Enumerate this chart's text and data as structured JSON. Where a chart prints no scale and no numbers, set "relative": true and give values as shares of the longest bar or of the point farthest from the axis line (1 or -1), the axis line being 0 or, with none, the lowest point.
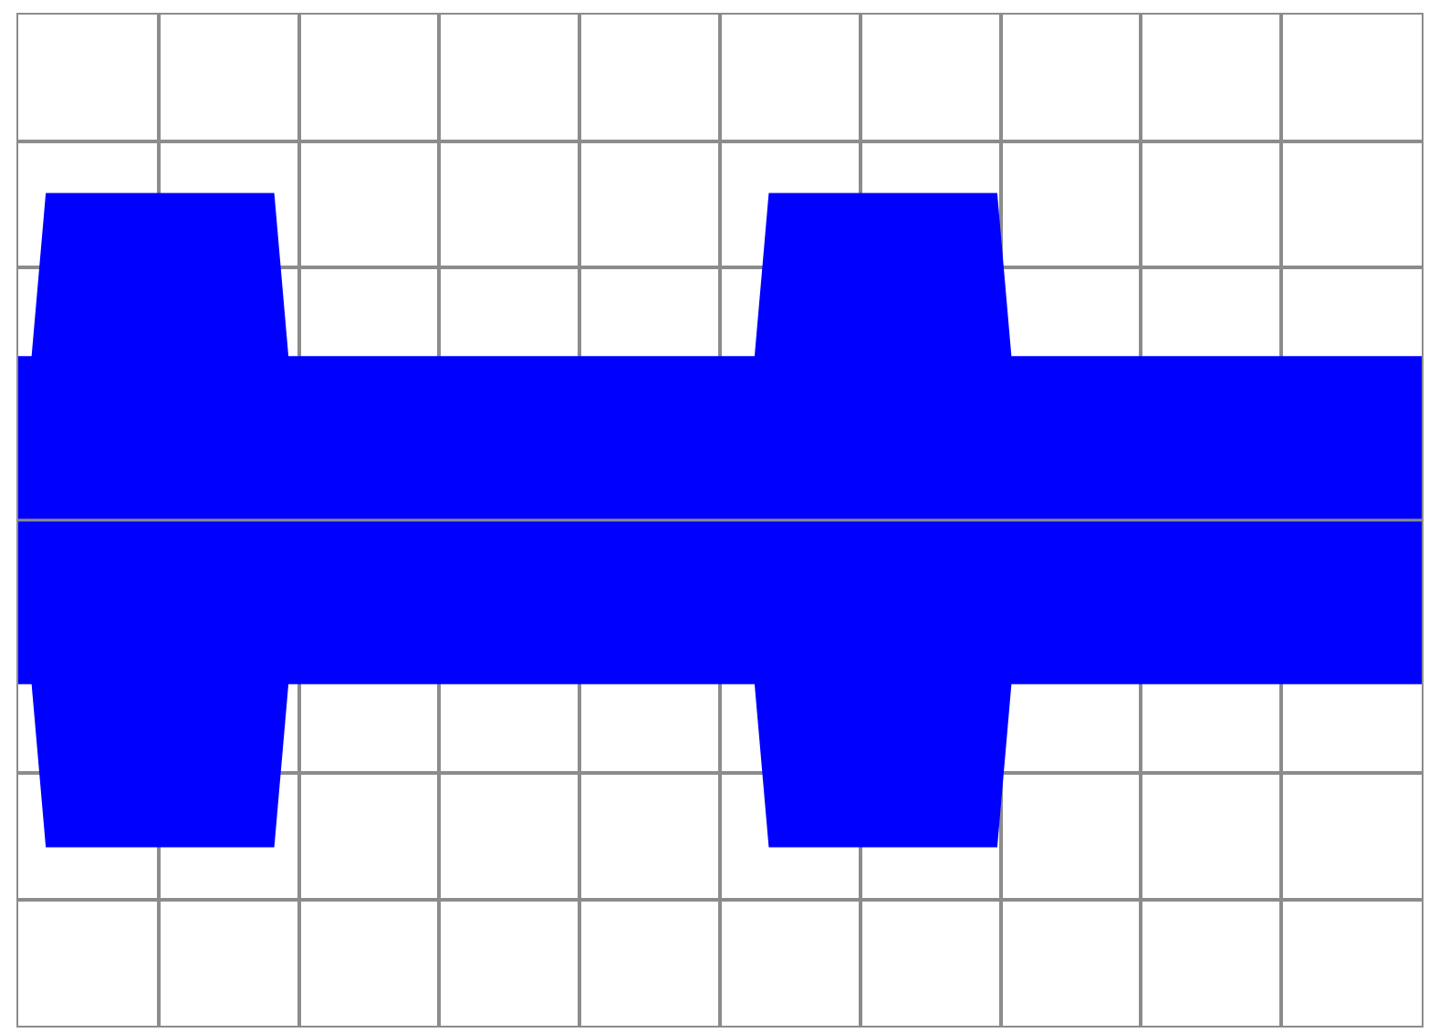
{
  "chart_data": {
    "type": "area",
    "relative": true,
    "grid": true,
    "categories": [
      null,
      null,
      null,
      null,
      null,
      null,
      null,
      null,
      null,
      null,
      null,
      null,
      null,
      null,
      null,
      null,
      null,
      null,
      null,
      null,
      null,
      null,
      null,
      null,
      null,
      null,
      null,
      null,
      null,
      null,
      null,
      null,
      null,
      null,
      null,
      null,
      null,
      null,
      null,
      null,
      null,
      null,
      null,
      null,
      null,
      null,
      null,
      null,
      null,
      null,
      null,
      null,
      null,
      null,
      null,
      null,
      null,
      null,
      null,
      null,
      null,
      null,
      null,
      null,
      null,
      null,
      null,
      null,
      null,
      null,
      null,
      null,
      null,
      null,
      null,
      null,
      null,
      null,
      null,
      null,
      null,
      null,
      null,
      null,
      null,
      null,
      null,
      null,
      null,
      null,
      null,
      null,
      null,
      null,
      null,
      null,
      null,
      null,
      null,
      null
    ],
    "series": [
      {
        "color": "#0000ff",
        "values": [
          0.5,
          0.5,
          1,
          1,
          1,
          1,
          1,
          1,
          1,
          1,
          1,
          1,
          1,
          1,
          1,
          1,
          1,
          1,
          1,
          0.5,
          0.5,
          0.5,
          0.5,
          0.5,
          0.5,
          0.5,
          0.5,
          0.5,
          0.5,
          0.5,
          0.5,
          0.5,
          0.5,
          0.5,
          0.5,
          0.5,
          0.5,
          0.5,
          0.5,
          0.5,
          0.5,
          0.5,
          0.5,
          0.5,
          0.5,
          0.5,
          0.5,
          0.5,
          0.5,
          0.5,
          0.5,
          0.5,
          0.5,
          1,
          1,
          1,
          1,
          1,
          1,
          1,
          1,
          1,
          1,
          1,
          1,
          1,
          1,
          1,
          1,
          1,
          0.5,
          0.5,
          0.5,
          0.5,
          0.5,
          0.5,
          0.5,
          0.5,
          0.5,
          0.5,
          0.5,
          0.5,
          0.5,
          0.5,
          0.5,
          0.5,
          0.5,
          0.5,
          0.5,
          0.5,
          0.5,
          0.5,
          0.5,
          0.5,
          0.5,
          0.5,
          0.5,
          0.5,
          0.5,
          0.5
        ]
      },
      {
        "color": "#0000ff",
        "values": [
          -0.5,
          -0.5,
          -1,
          -1,
          -1,
          -1,
          -1,
          -1,
          -1,
          -1,
          -1,
          -1,
          -1,
          -1,
          -1,
          -1,
          -1,
          -1,
          -1,
          -0.5,
          -0.5,
          -0.5,
          -0.5,
          -0.5,
          -0.5,
          -0.5,
          -0.5,
          -0.5,
          -0.5,
          -0.5,
          -0.5,
          -0.5,
          -0.5,
          -0.5,
          -0.5,
          -0.5,
          -0.5,
          -0.5,
          -0.5,
          -0.5,
          -0.5,
          -0.5,
          -0.5,
          -0.5,
          -0.5,
          -0.5,
          -0.5,
          -0.5,
          -0.5,
          -0.5,
          -0.5,
          -0.5,
          -0.5,
          -1,
          -1,
          -1,
          -1,
          -1,
          -1,
          -1,
          -1,
          -1,
          -1,
          -1,
          -1,
          -1,
          -1,
          -1,
          -1,
          -1,
          -0.5,
          -0.5,
          -0.5,
          -0.5,
          -0.5,
          -0.5,
          -0.5,
          -0.5,
          -0.5,
          -0.5,
          -0.5,
          -0.5,
          -0.5,
          -0.5,
          -0.5,
          -0.5,
          -0.5,
          -0.5,
          -0.5,
          -0.5,
          -0.5,
          -0.5,
          -0.5,
          -0.5,
          -0.5,
          -0.5,
          -0.5,
          -0.5,
          -0.5,
          -0.5
        ]
      }
    ]
  }
}
